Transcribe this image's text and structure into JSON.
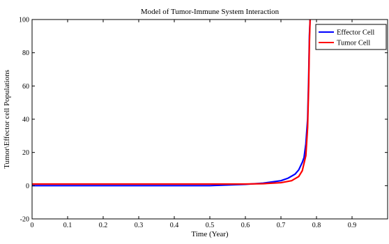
{
  "chart_data": {
    "type": "line",
    "title": "Model of Tumor-Immune System Interaction",
    "xlabel": "Time (Year)",
    "ylabel": "Tumor\\Effector cell Populations",
    "xlim": [
      0,
      1
    ],
    "ylim": [
      -20,
      100
    ],
    "x_ticks": [
      0,
      0.1,
      0.2,
      0.3,
      0.4,
      0.5,
      0.6,
      0.7,
      0.8,
      0.9
    ],
    "y_ticks": [
      -20,
      0,
      20,
      40,
      60,
      80,
      100
    ],
    "grid": false,
    "legend_position": "top-right",
    "series": [
      {
        "name": "Effector Cell",
        "color": "#0000ff",
        "points": [
          [
            0,
            0
          ],
          [
            0.1,
            0
          ],
          [
            0.2,
            0
          ],
          [
            0.3,
            0
          ],
          [
            0.4,
            0
          ],
          [
            0.5,
            0
          ],
          [
            0.6,
            0.8
          ],
          [
            0.65,
            1.5
          ],
          [
            0.7,
            3
          ],
          [
            0.72,
            4.5
          ],
          [
            0.74,
            7
          ],
          [
            0.75,
            9.5
          ],
          [
            0.76,
            14
          ],
          [
            0.765,
            17
          ],
          [
            0.77,
            25
          ],
          [
            0.775,
            40
          ],
          [
            0.778,
            65
          ],
          [
            0.78,
            90
          ],
          [
            0.782,
            100
          ]
        ]
      },
      {
        "name": "Tumor Cell",
        "color": "#ff0000",
        "points": [
          [
            0,
            1
          ],
          [
            0.1,
            1
          ],
          [
            0.2,
            1
          ],
          [
            0.3,
            1
          ],
          [
            0.4,
            1
          ],
          [
            0.5,
            1
          ],
          [
            0.6,
            1
          ],
          [
            0.65,
            1.2
          ],
          [
            0.7,
            1.8
          ],
          [
            0.73,
            3
          ],
          [
            0.75,
            5.5
          ],
          [
            0.76,
            9
          ],
          [
            0.77,
            18
          ],
          [
            0.775,
            35
          ],
          [
            0.778,
            60
          ],
          [
            0.78,
            85
          ],
          [
            0.782,
            100
          ]
        ]
      }
    ]
  }
}
